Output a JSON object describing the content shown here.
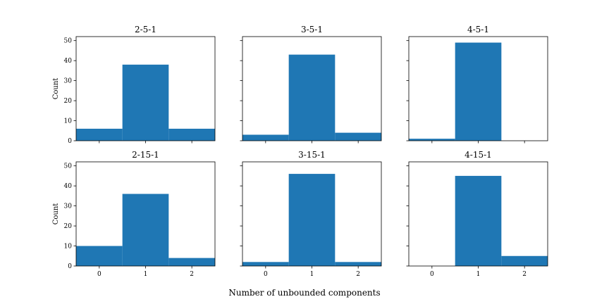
{
  "figure": {
    "xlabel": "Number of unbounded components"
  },
  "chart_data": [
    {
      "type": "bar",
      "title": "2-5-1",
      "categories": [
        0,
        1,
        2
      ],
      "values": [
        6,
        38,
        6
      ],
      "xlabel": "",
      "ylabel": "Count",
      "ylim": [
        0,
        52
      ],
      "yticks": [
        0,
        10,
        20,
        30,
        40,
        50
      ],
      "xticks": [
        0,
        1,
        2
      ],
      "show_xticklabels": false,
      "show_yticklabels": true,
      "color": "#1f77b4"
    },
    {
      "type": "bar",
      "title": "3-5-1",
      "categories": [
        0,
        1,
        2
      ],
      "values": [
        3,
        43,
        4
      ],
      "xlabel": "",
      "ylabel": "",
      "ylim": [
        0,
        52
      ],
      "yticks": [
        0,
        10,
        20,
        30,
        40,
        50
      ],
      "xticks": [
        0,
        1,
        2
      ],
      "show_xticklabels": false,
      "show_yticklabels": false,
      "color": "#1f77b4"
    },
    {
      "type": "bar",
      "title": "4-5-1",
      "categories": [
        0,
        1,
        2
      ],
      "values": [
        1,
        49,
        0
      ],
      "xlabel": "",
      "ylabel": "",
      "ylim": [
        0,
        52
      ],
      "yticks": [
        0,
        10,
        20,
        30,
        40,
        50
      ],
      "xticks": [
        0,
        1,
        2
      ],
      "show_xticklabels": false,
      "show_yticklabels": false,
      "color": "#1f77b4"
    },
    {
      "type": "bar",
      "title": "2-15-1",
      "categories": [
        0,
        1,
        2
      ],
      "values": [
        10,
        36,
        4
      ],
      "xlabel": "",
      "ylabel": "Count",
      "ylim": [
        0,
        52
      ],
      "yticks": [
        0,
        10,
        20,
        30,
        40,
        50
      ],
      "xticks": [
        0,
        1,
        2
      ],
      "show_xticklabels": true,
      "show_yticklabels": true,
      "color": "#1f77b4"
    },
    {
      "type": "bar",
      "title": "3-15-1",
      "categories": [
        0,
        1,
        2
      ],
      "values": [
        2,
        46,
        2
      ],
      "xlabel": "",
      "ylabel": "",
      "ylim": [
        0,
        52
      ],
      "yticks": [
        0,
        10,
        20,
        30,
        40,
        50
      ],
      "xticks": [
        0,
        1,
        2
      ],
      "show_xticklabels": true,
      "show_yticklabels": false,
      "color": "#1f77b4"
    },
    {
      "type": "bar",
      "title": "4-15-1",
      "categories": [
        0,
        1,
        2
      ],
      "values": [
        0,
        45,
        5
      ],
      "xlabel": "",
      "ylabel": "",
      "ylim": [
        0,
        52
      ],
      "yticks": [
        0,
        10,
        20,
        30,
        40,
        50
      ],
      "xticks": [
        0,
        1,
        2
      ],
      "show_xticklabels": true,
      "show_yticklabels": false,
      "color": "#1f77b4"
    }
  ]
}
